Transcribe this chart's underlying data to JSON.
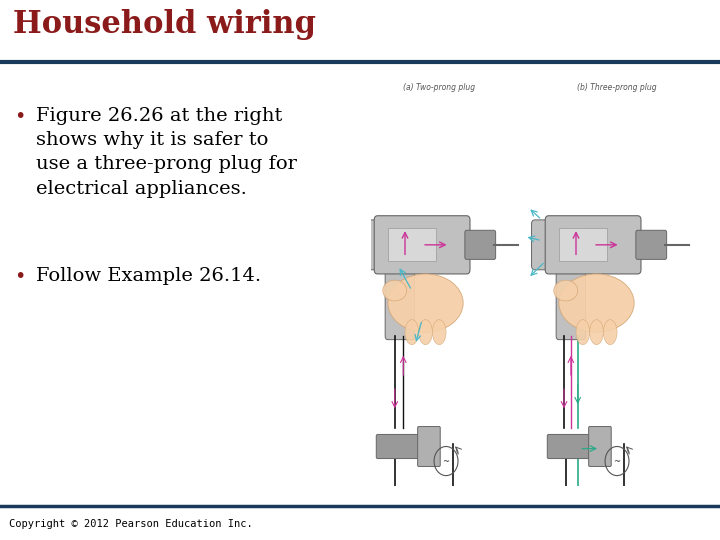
{
  "title": "Household wiring",
  "title_color": "#8B1A1A",
  "header_line_color": "#1a3a5c",
  "bullet1_lines": [
    "Figure 26.26 at the right",
    "shows why it is safer to",
    "use a three-prong plug for",
    "electrical appliances."
  ],
  "bullet2": "Follow Example 26.14.",
  "bullet_color": "#8B1A1A",
  "text_color": "#000000",
  "footer_text": "Copyright © 2012 Pearson Education Inc.",
  "footer_line_color": "#1a3a5c",
  "bg_color": "#ffffff",
  "label_a": "(a) Two-prong plug",
  "label_b": "(b) Three-prong plug",
  "title_fontsize": 22,
  "body_fontsize": 14,
  "footer_fontsize": 7.5
}
